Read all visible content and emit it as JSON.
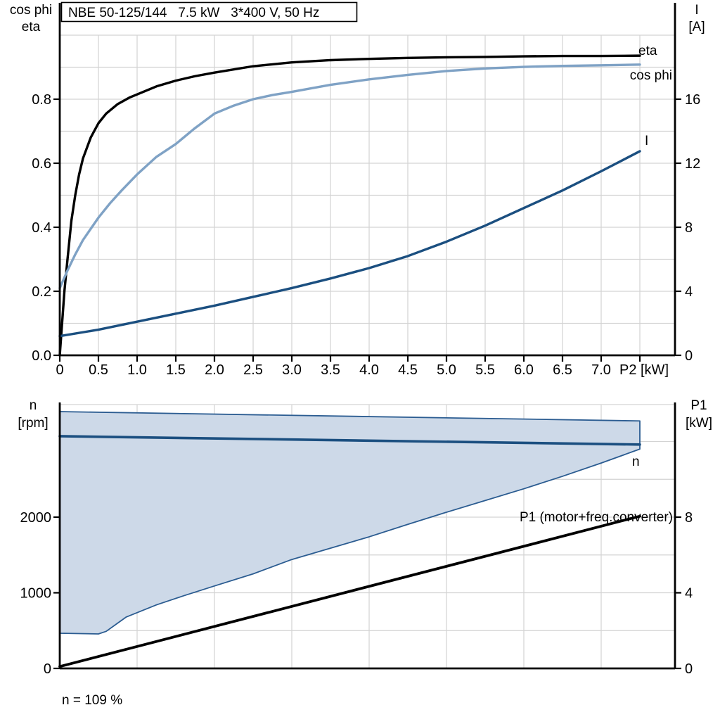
{
  "title_box": "NBE 50-125/144   7.5 kW   3*400 V, 50 Hz",
  "colors": {
    "black": "#000000",
    "dark_blue": "#1b4f80",
    "light_blue": "#7fa2c5",
    "envelope_fill": "#cdd9e8",
    "envelope_border": "#2b5c91",
    "grid": "#d3d3d3",
    "axis": "#000000"
  },
  "chart_data": [
    {
      "type": "line",
      "title": "NBE 50-125/144   7.5 kW   3*400 V, 50 Hz",
      "grid": "on",
      "x_axis": {
        "label": "P2 [kW]",
        "min": 0,
        "max": 7.95,
        "grid_step": 0.5,
        "ticks": [
          {
            "v": 0,
            "label": "0"
          },
          {
            "v": 0.5,
            "label": "0.5"
          },
          {
            "v": 1,
            "label": "1.0"
          },
          {
            "v": 1.5,
            "label": "1.5"
          },
          {
            "v": 2,
            "label": "2.0"
          },
          {
            "v": 2.5,
            "label": "2.5"
          },
          {
            "v": 3,
            "label": "3.0"
          },
          {
            "v": 3.5,
            "label": "3.5"
          },
          {
            "v": 4,
            "label": "4.0"
          },
          {
            "v": 4.5,
            "label": "4.5"
          },
          {
            "v": 5,
            "label": "5.0"
          },
          {
            "v": 5.5,
            "label": "5.5"
          },
          {
            "v": 6,
            "label": "6.0"
          },
          {
            "v": 6.5,
            "label": "6.5"
          },
          {
            "v": 7,
            "label": "7.0"
          },
          {
            "v": 7.5,
            "label": ""
          }
        ]
      },
      "y_left": {
        "label_line1": "cos phi",
        "label_line2": "eta",
        "min": 0,
        "max": 1.01,
        "grid_step": 0.1,
        "ticks": [
          {
            "v": 0,
            "label": "0.0"
          },
          {
            "v": 0.2,
            "label": "0.2"
          },
          {
            "v": 0.4,
            "label": "0.4"
          },
          {
            "v": 0.6,
            "label": "0.6"
          },
          {
            "v": 0.8,
            "label": "0.8"
          }
        ]
      },
      "y_right": {
        "label_line1": "I",
        "label_line2": "[A]",
        "min": 0,
        "max": 20.2,
        "ticks": [
          {
            "v": 0,
            "label": "0"
          },
          {
            "v": 4,
            "label": "4"
          },
          {
            "v": 8,
            "label": "8"
          },
          {
            "v": 12,
            "label": "12"
          },
          {
            "v": 16,
            "label": "16"
          }
        ]
      },
      "series": [
        {
          "name": "eta",
          "label": "eta",
          "axis": "left",
          "color_key": "black",
          "width": 3.4,
          "points": [
            [
              0,
              0
            ],
            [
              0.03,
              0.1
            ],
            [
              0.06,
              0.2
            ],
            [
              0.1,
              0.3
            ],
            [
              0.15,
              0.42
            ],
            [
              0.2,
              0.5
            ],
            [
              0.25,
              0.565
            ],
            [
              0.3,
              0.615
            ],
            [
              0.4,
              0.68
            ],
            [
              0.5,
              0.725
            ],
            [
              0.6,
              0.755
            ],
            [
              0.75,
              0.785
            ],
            [
              0.9,
              0.805
            ],
            [
              1.0,
              0.815
            ],
            [
              1.25,
              0.84
            ],
            [
              1.5,
              0.858
            ],
            [
              1.75,
              0.872
            ],
            [
              2.0,
              0.883
            ],
            [
              2.5,
              0.903
            ],
            [
              3.0,
              0.915
            ],
            [
              3.5,
              0.922
            ],
            [
              4.0,
              0.926
            ],
            [
              4.5,
              0.929
            ],
            [
              5.0,
              0.931
            ],
            [
              5.5,
              0.932
            ],
            [
              6.0,
              0.934
            ],
            [
              6.5,
              0.935
            ],
            [
              7.0,
              0.935
            ],
            [
              7.5,
              0.936
            ]
          ]
        },
        {
          "name": "cos phi",
          "label": "cos phi",
          "axis": "left",
          "color_key": "light_blue",
          "width": 3.4,
          "points": [
            [
              0,
              0.21
            ],
            [
              0.1,
              0.265
            ],
            [
              0.2,
              0.315
            ],
            [
              0.3,
              0.36
            ],
            [
              0.4,
              0.395
            ],
            [
              0.5,
              0.43
            ],
            [
              0.65,
              0.475
            ],
            [
              0.8,
              0.515
            ],
            [
              1.0,
              0.565
            ],
            [
              1.25,
              0.62
            ],
            [
              1.5,
              0.66
            ],
            [
              1.75,
              0.71
            ],
            [
              2.0,
              0.755
            ],
            [
              2.25,
              0.78
            ],
            [
              2.5,
              0.8
            ],
            [
              2.75,
              0.813
            ],
            [
              3.0,
              0.823
            ],
            [
              3.5,
              0.845
            ],
            [
              4.0,
              0.862
            ],
            [
              4.5,
              0.876
            ],
            [
              5.0,
              0.888
            ],
            [
              5.5,
              0.896
            ],
            [
              6.0,
              0.901
            ],
            [
              6.5,
              0.904
            ],
            [
              7.0,
              0.906
            ],
            [
              7.5,
              0.908
            ]
          ]
        },
        {
          "name": "I",
          "label": "I",
          "axis": "right",
          "color_key": "dark_blue",
          "width": 3.4,
          "points": [
            [
              0,
              1.2
            ],
            [
              0.5,
              1.6
            ],
            [
              1,
              2.1
            ],
            [
              1.5,
              2.6
            ],
            [
              2,
              3.1
            ],
            [
              2.5,
              3.65
            ],
            [
              3,
              4.2
            ],
            [
              3.5,
              4.8
            ],
            [
              4,
              5.45
            ],
            [
              4.5,
              6.2
            ],
            [
              5,
              7.1
            ],
            [
              5.5,
              8.1
            ],
            [
              6,
              9.2
            ],
            [
              6.5,
              10.3
            ],
            [
              7,
              11.5
            ],
            [
              7.5,
              12.75
            ]
          ]
        }
      ]
    },
    {
      "type": "area",
      "title": "",
      "grid": "on",
      "x_axis": {
        "label": "",
        "min": 0,
        "max": 7.95,
        "grid_step": 1,
        "ticks": []
      },
      "y_left": {
        "label_line1": "n",
        "label_line2": "[rpm]",
        "min": 0,
        "max": 3470,
        "grid_step": 500,
        "ticks": [
          {
            "v": 0,
            "label": "0"
          },
          {
            "v": 1000,
            "label": "1000"
          },
          {
            "v": 2000,
            "label": "2000"
          }
        ]
      },
      "y_right": {
        "label_line1": "P1",
        "label_line2": "[kW]",
        "min": 0,
        "max": 13.9,
        "ticks": [
          {
            "v": 0,
            "label": "0"
          },
          {
            "v": 4,
            "label": "4"
          },
          {
            "v": 8,
            "label": "8"
          }
        ]
      },
      "series": [
        {
          "name": "n",
          "label": "n",
          "axis": "left",
          "color_key": "dark_blue",
          "width": 3.6,
          "points": [
            [
              0,
              3070
            ],
            [
              7.5,
              2960
            ]
          ]
        },
        {
          "name": "P1",
          "label": "P1 (motor+freq.converter)",
          "axis": "right",
          "color_key": "black",
          "width": 3.8,
          "points": [
            [
              0,
              0.1
            ],
            [
              7.5,
              8.05
            ]
          ]
        }
      ],
      "envelope": {
        "name": "speed operating envelope",
        "upper_rpm": [
          [
            0,
            3395
          ],
          [
            7.5,
            3272
          ]
        ],
        "lower_rpm": [
          [
            0,
            465
          ],
          [
            0.5,
            456
          ],
          [
            0.6,
            490
          ],
          [
            0.86,
            680
          ],
          [
            1.25,
            840
          ],
          [
            1.6,
            960
          ],
          [
            2.0,
            1090
          ],
          [
            2.5,
            1250
          ],
          [
            3.0,
            1440
          ],
          [
            3.5,
            1590
          ],
          [
            4.0,
            1740
          ],
          [
            4.5,
            1905
          ],
          [
            5.0,
            2065
          ],
          [
            5.5,
            2220
          ],
          [
            6.0,
            2375
          ],
          [
            6.5,
            2540
          ],
          [
            7.0,
            2715
          ],
          [
            7.5,
            2900
          ]
        ]
      },
      "annotation": "n = 109 %"
    }
  ]
}
